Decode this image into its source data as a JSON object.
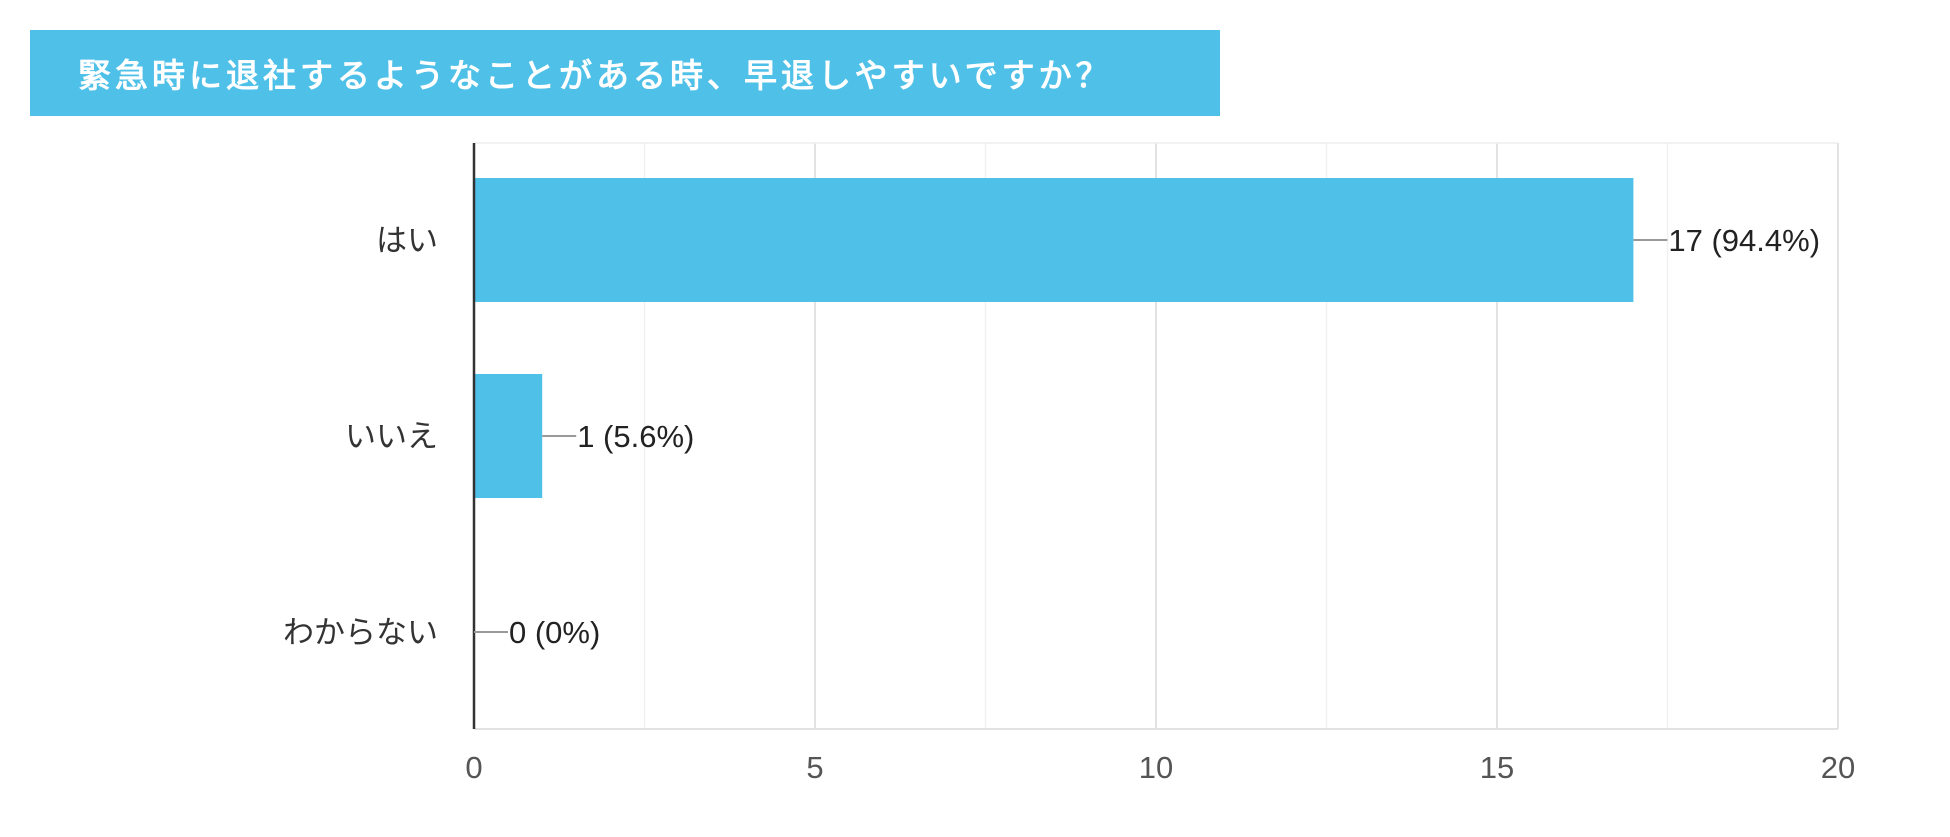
{
  "chart_data": {
    "type": "bar",
    "orientation": "horizontal",
    "title": "緊急時に退社するようなことがある時、早退しやすいですか？",
    "categories": [
      "はい",
      "いいえ",
      "わからない"
    ],
    "values": [
      17,
      1,
      0
    ],
    "data_labels": [
      "17 (94.4%)",
      "1 (5.6%)",
      "0 (0%)"
    ],
    "xlim": [
      0,
      20
    ],
    "x_ticks": [
      0,
      5,
      10,
      15,
      20
    ],
    "grid": true,
    "bar_color": "#4fc0e8",
    "title_bg_color": "#4fc0e8"
  }
}
